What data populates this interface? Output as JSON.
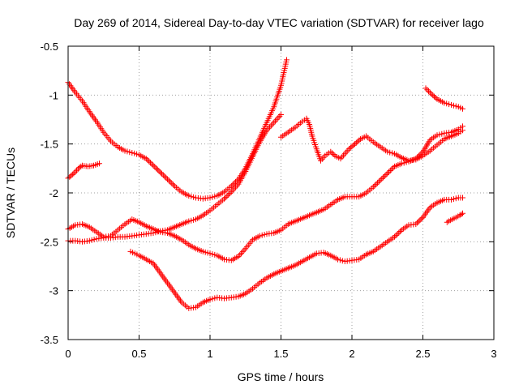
{
  "chart_data": {
    "type": "scatter",
    "title": "Day 269 of 2014, Sidereal Day-to-day VTEC variation (SDTVAR) for receiver lago",
    "xlabel": "GPS time / hours",
    "ylabel": "SDTVAR / TECUs",
    "xlim": [
      0,
      3
    ],
    "ylim": [
      -3.5,
      -0.5
    ],
    "xticks": [
      "0",
      "0.5",
      "1",
      "1.5",
      "2",
      "2.5",
      "3"
    ],
    "yticks": [
      "-0.5",
      "-1",
      "-1.5",
      "-2",
      "-2.5",
      "-3",
      "-3.5"
    ],
    "grid": true,
    "marker": "+",
    "marker_color": "#ff0000",
    "series": [
      {
        "points": [
          [
            0,
            -0.87
          ],
          [
            0.05,
            -0.97
          ],
          [
            0.1,
            -1.06
          ],
          [
            0.15,
            -1.17
          ],
          [
            0.2,
            -1.27
          ],
          [
            0.25,
            -1.38
          ],
          [
            0.3,
            -1.47
          ],
          [
            0.35,
            -1.53
          ],
          [
            0.4,
            -1.57
          ],
          [
            0.45,
            -1.59
          ],
          [
            0.5,
            -1.61
          ],
          [
            0.55,
            -1.65
          ],
          [
            0.6,
            -1.72
          ],
          [
            0.65,
            -1.79
          ],
          [
            0.7,
            -1.86
          ],
          [
            0.75,
            -1.93
          ],
          [
            0.8,
            -1.99
          ],
          [
            0.85,
            -2.03
          ],
          [
            0.9,
            -2.05
          ],
          [
            0.95,
            -2.06
          ],
          [
            1.0,
            -2.05
          ],
          [
            1.05,
            -2.03
          ],
          [
            1.1,
            -1.99
          ],
          [
            1.15,
            -1.93
          ],
          [
            1.2,
            -1.86
          ],
          [
            1.25,
            -1.75
          ],
          [
            1.3,
            -1.6
          ],
          [
            1.35,
            -1.44
          ],
          [
            1.4,
            -1.28
          ],
          [
            1.45,
            -1.12
          ],
          [
            1.5,
            -0.9
          ],
          [
            1.54,
            -0.64
          ]
        ]
      },
      {
        "points": [
          [
            0,
            -1.85
          ],
          [
            0.04,
            -1.8
          ],
          [
            0.08,
            -1.74
          ],
          [
            0.1,
            -1.72
          ],
          [
            0.14,
            -1.73
          ],
          [
            0.18,
            -1.72
          ],
          [
            0.22,
            -1.7
          ]
        ]
      },
      {
        "points": [
          [
            0,
            -2.37
          ],
          [
            0.05,
            -2.33
          ],
          [
            0.1,
            -2.32
          ],
          [
            0.15,
            -2.35
          ],
          [
            0.2,
            -2.4
          ],
          [
            0.25,
            -2.45
          ],
          [
            0.3,
            -2.44
          ],
          [
            0.35,
            -2.38
          ],
          [
            0.4,
            -2.32
          ],
          [
            0.45,
            -2.27
          ],
          [
            0.5,
            -2.3
          ],
          [
            0.55,
            -2.34
          ],
          [
            0.6,
            -2.37
          ],
          [
            0.65,
            -2.4
          ],
          [
            0.7,
            -2.41
          ],
          [
            0.75,
            -2.44
          ],
          [
            0.8,
            -2.48
          ],
          [
            0.85,
            -2.53
          ],
          [
            0.9,
            -2.57
          ],
          [
            0.95,
            -2.6
          ],
          [
            1.0,
            -2.62
          ],
          [
            1.05,
            -2.64
          ],
          [
            1.1,
            -2.68
          ],
          [
            1.15,
            -2.69
          ],
          [
            1.2,
            -2.65
          ],
          [
            1.25,
            -2.57
          ],
          [
            1.3,
            -2.48
          ],
          [
            1.35,
            -2.44
          ],
          [
            1.4,
            -2.42
          ],
          [
            1.45,
            -2.41
          ],
          [
            1.5,
            -2.38
          ],
          [
            1.55,
            -2.32
          ],
          [
            1.6,
            -2.29
          ],
          [
            1.65,
            -2.26
          ],
          [
            1.7,
            -2.23
          ],
          [
            1.75,
            -2.2
          ],
          [
            1.8,
            -2.17
          ],
          [
            1.85,
            -2.12
          ],
          [
            1.9,
            -2.07
          ],
          [
            1.95,
            -2.04
          ],
          [
            2.0,
            -2.04
          ],
          [
            2.05,
            -2.04
          ],
          [
            2.1,
            -2.0
          ],
          [
            2.15,
            -1.94
          ],
          [
            2.2,
            -1.87
          ],
          [
            2.25,
            -1.8
          ],
          [
            2.3,
            -1.73
          ],
          [
            2.35,
            -1.7
          ],
          [
            2.4,
            -1.68
          ],
          [
            2.45,
            -1.65
          ],
          [
            2.5,
            -1.58
          ],
          [
            2.55,
            -1.46
          ],
          [
            2.6,
            -1.41
          ],
          [
            2.65,
            -1.39
          ],
          [
            2.7,
            -1.38
          ],
          [
            2.75,
            -1.35
          ],
          [
            2.78,
            -1.32
          ]
        ]
      },
      {
        "points": [
          [
            0,
            -2.49
          ],
          [
            0.05,
            -2.49
          ],
          [
            0.1,
            -2.5
          ],
          [
            0.15,
            -2.49
          ],
          [
            0.2,
            -2.47
          ],
          [
            0.25,
            -2.46
          ],
          [
            0.3,
            -2.46
          ],
          [
            0.35,
            -2.45
          ],
          [
            0.4,
            -2.45
          ],
          [
            0.45,
            -2.44
          ],
          [
            0.5,
            -2.43
          ],
          [
            0.55,
            -2.42
          ],
          [
            0.6,
            -2.41
          ],
          [
            0.65,
            -2.39
          ],
          [
            0.7,
            -2.38
          ],
          [
            0.75,
            -2.35
          ],
          [
            0.8,
            -2.32
          ],
          [
            0.85,
            -2.29
          ],
          [
            0.9,
            -2.27
          ],
          [
            0.95,
            -2.23
          ],
          [
            1.0,
            -2.18
          ],
          [
            1.05,
            -2.12
          ],
          [
            1.1,
            -2.06
          ],
          [
            1.15,
            -1.99
          ],
          [
            1.2,
            -1.91
          ],
          [
            1.25,
            -1.78
          ],
          [
            1.3,
            -1.63
          ],
          [
            1.35,
            -1.48
          ],
          [
            1.4,
            -1.36
          ],
          [
            1.45,
            -1.28
          ],
          [
            1.5,
            -1.2
          ]
        ]
      },
      {
        "points": [
          [
            1.5,
            -1.43
          ],
          [
            1.55,
            -1.38
          ],
          [
            1.6,
            -1.33
          ],
          [
            1.65,
            -1.27
          ],
          [
            1.68,
            -1.24
          ],
          [
            1.7,
            -1.3
          ],
          [
            1.72,
            -1.42
          ],
          [
            1.75,
            -1.55
          ],
          [
            1.78,
            -1.67
          ],
          [
            1.81,
            -1.62
          ],
          [
            1.85,
            -1.58
          ],
          [
            1.88,
            -1.62
          ],
          [
            1.92,
            -1.65
          ],
          [
            1.95,
            -1.6
          ],
          [
            1.98,
            -1.55
          ],
          [
            2.02,
            -1.5
          ],
          [
            2.06,
            -1.45
          ],
          [
            2.1,
            -1.42
          ],
          [
            2.15,
            -1.48
          ],
          [
            2.2,
            -1.53
          ],
          [
            2.25,
            -1.58
          ],
          [
            2.3,
            -1.6
          ],
          [
            2.35,
            -1.64
          ],
          [
            2.4,
            -1.67
          ],
          [
            2.45,
            -1.66
          ],
          [
            2.5,
            -1.62
          ],
          [
            2.55,
            -1.57
          ],
          [
            2.6,
            -1.51
          ],
          [
            2.65,
            -1.45
          ],
          [
            2.7,
            -1.42
          ],
          [
            2.75,
            -1.39
          ],
          [
            2.78,
            -1.36
          ]
        ]
      },
      {
        "points": [
          [
            0.44,
            -2.6
          ],
          [
            0.5,
            -2.64
          ],
          [
            0.55,
            -2.68
          ],
          [
            0.6,
            -2.72
          ],
          [
            0.65,
            -2.82
          ],
          [
            0.7,
            -2.92
          ],
          [
            0.75,
            -3.02
          ],
          [
            0.8,
            -3.12
          ],
          [
            0.85,
            -3.18
          ],
          [
            0.9,
            -3.17
          ],
          [
            0.95,
            -3.12
          ],
          [
            1.0,
            -3.09
          ],
          [
            1.05,
            -3.07
          ],
          [
            1.1,
            -3.08
          ],
          [
            1.15,
            -3.07
          ],
          [
            1.2,
            -3.06
          ],
          [
            1.25,
            -3.03
          ],
          [
            1.3,
            -2.98
          ],
          [
            1.35,
            -2.92
          ],
          [
            1.4,
            -2.87
          ],
          [
            1.45,
            -2.83
          ],
          [
            1.5,
            -2.8
          ],
          [
            1.55,
            -2.77
          ],
          [
            1.6,
            -2.74
          ],
          [
            1.65,
            -2.7
          ],
          [
            1.7,
            -2.66
          ],
          [
            1.75,
            -2.62
          ],
          [
            1.8,
            -2.61
          ],
          [
            1.85,
            -2.64
          ],
          [
            1.9,
            -2.68
          ],
          [
            1.95,
            -2.7
          ],
          [
            2.0,
            -2.69
          ],
          [
            2.05,
            -2.68
          ],
          [
            2.1,
            -2.63
          ],
          [
            2.15,
            -2.6
          ],
          [
            2.2,
            -2.55
          ],
          [
            2.25,
            -2.5
          ],
          [
            2.3,
            -2.45
          ],
          [
            2.35,
            -2.38
          ],
          [
            2.4,
            -2.33
          ],
          [
            2.45,
            -2.32
          ],
          [
            2.5,
            -2.25
          ],
          [
            2.55,
            -2.15
          ],
          [
            2.6,
            -2.1
          ],
          [
            2.65,
            -2.07
          ],
          [
            2.7,
            -2.07
          ],
          [
            2.75,
            -2.05
          ],
          [
            2.78,
            -2.05
          ]
        ]
      },
      {
        "points": [
          [
            2.52,
            -0.93
          ],
          [
            2.56,
            -0.99
          ],
          [
            2.6,
            -1.04
          ],
          [
            2.65,
            -1.08
          ],
          [
            2.7,
            -1.1
          ],
          [
            2.75,
            -1.12
          ],
          [
            2.78,
            -1.14
          ]
        ]
      },
      {
        "points": [
          [
            2.67,
            -2.3
          ],
          [
            2.72,
            -2.26
          ],
          [
            2.76,
            -2.23
          ],
          [
            2.78,
            -2.21
          ]
        ]
      }
    ]
  }
}
